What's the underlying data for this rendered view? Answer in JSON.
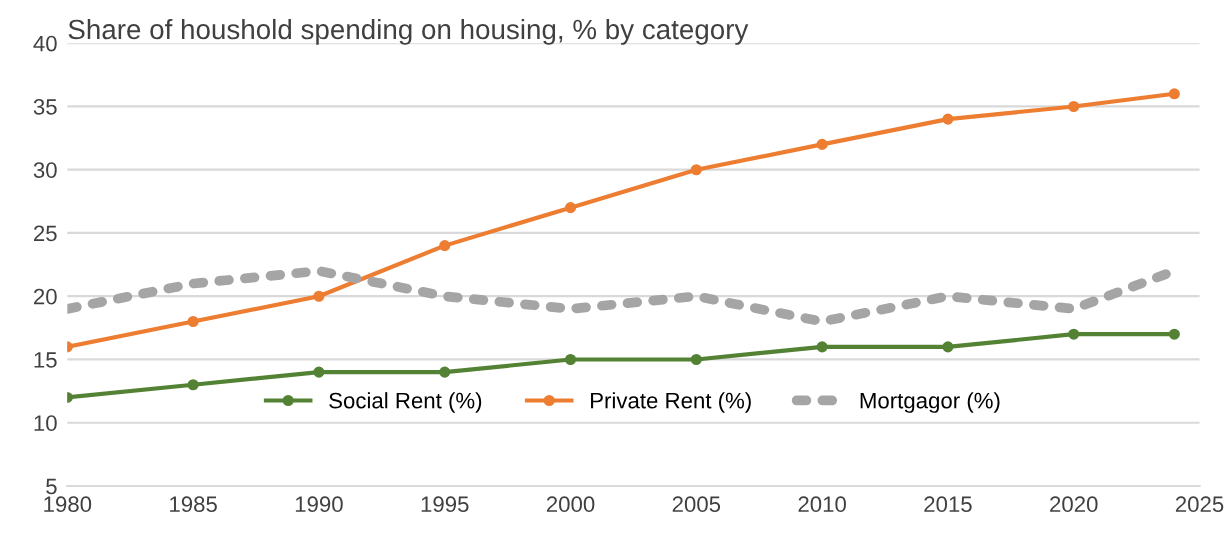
{
  "chart_data": {
    "type": "line",
    "title": "Share of houshold spending on housing, % by category",
    "x": [
      1980,
      1985,
      1990,
      1995,
      2000,
      2005,
      2010,
      2015,
      2020,
      2024
    ],
    "series": [
      {
        "name": "Social Rent (%)",
        "color": "#548235",
        "values": [
          12,
          13,
          14,
          14,
          15,
          15,
          16,
          16,
          17,
          17
        ],
        "marker": "circle",
        "line_style": "solid"
      },
      {
        "name": "Private Rent (%)",
        "color": "#ed7d31",
        "values": [
          16,
          18,
          20,
          24,
          27,
          30,
          32,
          34,
          35,
          36
        ],
        "marker": "circle",
        "line_style": "solid"
      },
      {
        "name": "Mortgagor (%)",
        "color": "#a5a5a5",
        "values": [
          19,
          21,
          22,
          20,
          19,
          20,
          18,
          20,
          19,
          22
        ],
        "marker": "none",
        "line_style": "dotted"
      }
    ],
    "xlim": [
      1980,
      2025
    ],
    "xticks": [
      1980,
      1985,
      1990,
      1995,
      2000,
      2005,
      2010,
      2015,
      2020,
      2025
    ],
    "ylim": [
      5,
      40
    ],
    "yticks": [
      5,
      10,
      15,
      20,
      25,
      30,
      35,
      40
    ],
    "grid": "y",
    "legend": "bottom"
  }
}
